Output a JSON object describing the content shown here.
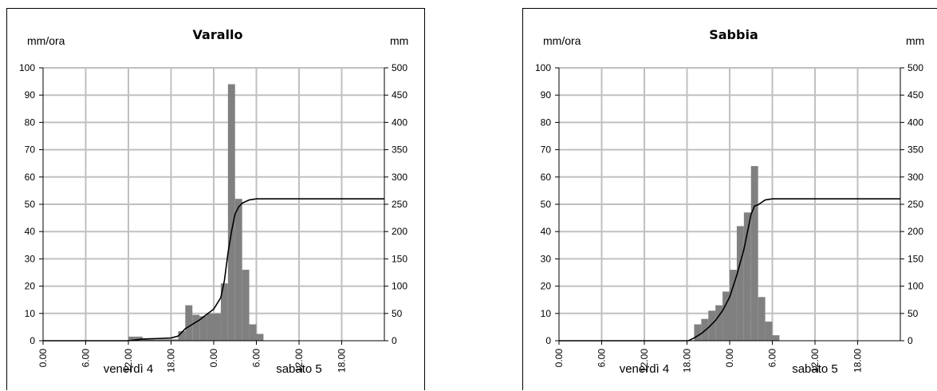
{
  "chart_data": [
    {
      "type": "bar",
      "title": "Varallo",
      "ylabel_left": "mm/ora",
      "ylabel_right": "mm",
      "ylim_left": [
        0,
        100
      ],
      "ylim_right": [
        0,
        500
      ],
      "yticks_left": [
        "0",
        "10",
        "20",
        "30",
        "40",
        "50",
        "60",
        "70",
        "80",
        "90",
        "100"
      ],
      "yticks_right": [
        "0",
        "50",
        "100",
        "150",
        "200",
        "250",
        "300",
        "350",
        "400",
        "450",
        "500"
      ],
      "xlim_hours": [
        0,
        48
      ],
      "xticks": [
        "0.00",
        "6.00",
        "12.00",
        "18.00",
        "0.00",
        "6.00",
        "12.00",
        "18.00"
      ],
      "day_labels": [
        "venerdì 4",
        "sabato 5"
      ],
      "grid": true,
      "series": [
        {
          "kind": "bar",
          "axis": "left",
          "color": "#808080",
          "x": [
            12,
            13,
            14,
            15,
            16,
            17,
            18,
            19,
            20,
            21,
            22,
            23,
            24,
            25,
            26,
            27,
            28,
            29,
            30,
            31
          ],
          "values": [
            1.5,
            1.5,
            0.5,
            0.5,
            0.5,
            0.5,
            0.5,
            3.5,
            13,
            9.5,
            9,
            10,
            10,
            21,
            94,
            52,
            26,
            6,
            2.5,
            0
          ]
        },
        {
          "kind": "line",
          "axis": "right",
          "color": "#000000",
          "x": [
            0,
            12,
            13,
            14,
            15,
            16,
            17,
            18,
            19,
            20,
            21,
            22,
            23,
            24,
            25,
            25.5,
            26,
            26.5,
            27,
            27.5,
            28,
            29,
            30,
            31,
            48
          ],
          "values": [
            0,
            0,
            1.5,
            3,
            3.5,
            4,
            4.5,
            5,
            8.5,
            22,
            30,
            38,
            48,
            58,
            79,
            110,
            160,
            200,
            232,
            245,
            252,
            258,
            260,
            260,
            260
          ]
        }
      ]
    },
    {
      "type": "bar",
      "title": "Sabbia",
      "ylabel_left": "mm/ora",
      "ylabel_right": "mm",
      "ylim_left": [
        0,
        100
      ],
      "ylim_right": [
        0,
        500
      ],
      "yticks_left": [
        "0",
        "10",
        "20",
        "30",
        "40",
        "50",
        "60",
        "70",
        "80",
        "90",
        "100"
      ],
      "yticks_right": [
        "0",
        "50",
        "100",
        "150",
        "200",
        "250",
        "300",
        "350",
        "400",
        "450",
        "500"
      ],
      "xlim_hours": [
        0,
        48
      ],
      "xticks": [
        "0.00",
        "6.00",
        "12.00",
        "18.00",
        "0.00",
        "6.00",
        "12.00",
        "18.00"
      ],
      "day_labels": [
        "venerdì 4",
        "sabato 5"
      ],
      "grid": true,
      "series": [
        {
          "kind": "bar",
          "axis": "left",
          "color": "#808080",
          "x": [
            19,
            20,
            21,
            22,
            23,
            24,
            25,
            26,
            27,
            28,
            29,
            30,
            31
          ],
          "values": [
            6,
            8,
            11,
            13,
            18,
            26,
            42,
            47,
            64,
            16,
            7,
            2,
            0
          ]
        },
        {
          "kind": "line",
          "axis": "right",
          "color": "#000000",
          "x": [
            0,
            18.2,
            19,
            20,
            21,
            22,
            23,
            24,
            25,
            26,
            27,
            27.5,
            28,
            29,
            30,
            48
          ],
          "values": [
            0,
            0,
            5,
            13,
            24,
            37,
            55,
            80,
            120,
            167,
            231,
            247,
            249,
            258,
            260,
            260
          ]
        }
      ]
    }
  ]
}
